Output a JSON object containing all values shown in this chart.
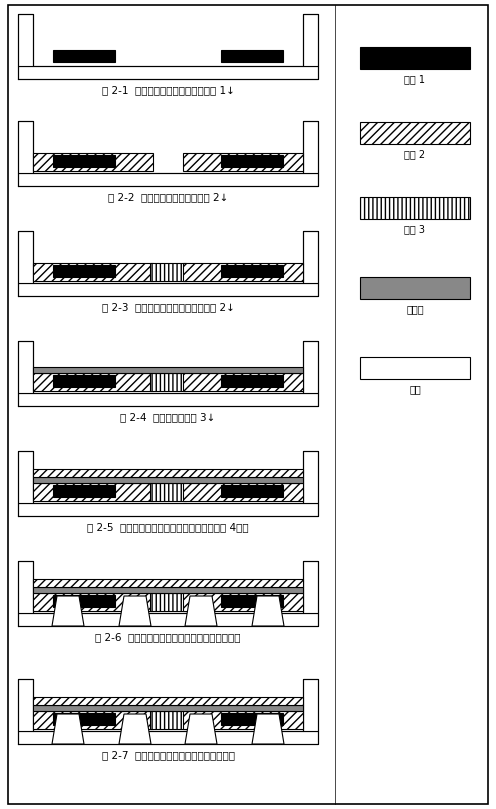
{
  "fig_width": 4.96,
  "fig_height": 8.09,
  "bg_color": "#ffffff",
  "ec": "#000000",
  "insulator_color": "#888888",
  "lw": 0.8,
  "captions": [
    "图 2-1  刺蚀腔体，淠积并图形化金属 1↓",
    "图 2-2  淠积并图形化犍牲层金属 2↓",
    "图 2-3  继续淠积并图形化犍牲层金属 2↓",
    "图 2-4  电镀上电极金属 3↓",
    "图 2-5  淠积绝缘层，在其上淠积并图形化金属 4线圈",
    "图 2-6  进行器件背面刺蚀，并完成上下电极引出",
    "图 2-7  犍牲层底蚀，释放平板及折合梁结构"
  ],
  "legend_labels": [
    "金属 1",
    "金属 2",
    "金属 3",
    "绝缘层",
    "衅底"
  ],
  "legend_colors": [
    "#000000",
    "#ffffff",
    "#ffffff",
    "#888888",
    "#ffffff"
  ],
  "legend_hatches": [
    "",
    "////",
    "||||",
    "",
    ""
  ]
}
